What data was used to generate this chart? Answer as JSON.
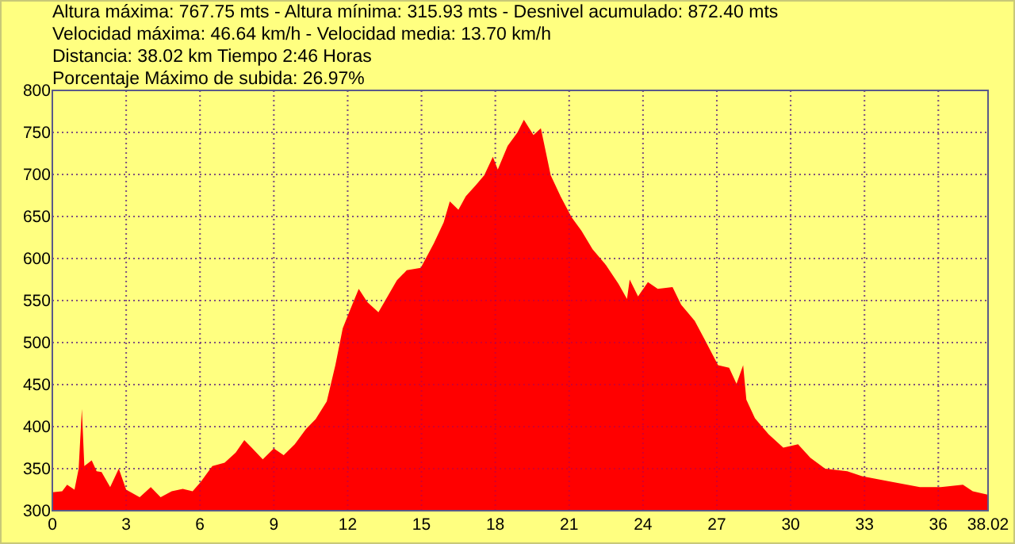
{
  "chart_data": {
    "type": "area",
    "annotations": [
      "Altura máxima: 767.75 mts - Altura mínima: 315.93 mts - Desnivel acumulado: 872.40 mts",
      "Velocidad máxima: 46.64 km/h - Velocidad media: 13.70 km/h",
      "Distancia: 38.02 km Tiempo 2:46 Horas",
      "Porcentaje Máximo de subida: 26.97%"
    ],
    "series": [
      {
        "color": "#ff0000",
        "x": [
          0,
          0.4,
          0.6,
          0.9,
          1.07,
          1.2,
          1.3,
          1.6,
          1.8,
          2.0,
          2.35,
          2.7,
          3.0,
          3.55,
          4.0,
          4.4,
          4.85,
          5.3,
          5.7,
          6.05,
          6.5,
          7.0,
          7.45,
          7.8,
          8.1,
          8.55,
          9.0,
          9.4,
          9.85,
          10.3,
          10.7,
          11.15,
          11.5,
          11.8,
          12.06,
          12.45,
          12.8,
          13.25,
          14.0,
          14.4,
          14.97,
          15.5,
          15.9,
          16.15,
          16.5,
          16.8,
          17.2,
          17.55,
          17.9,
          18.1,
          18.5,
          18.9,
          19.16,
          19.55,
          19.85,
          20.25,
          20.65,
          21.1,
          21.5,
          21.95,
          22.5,
          23.0,
          23.35,
          23.46,
          23.8,
          24.2,
          24.6,
          25.2,
          25.55,
          26.1,
          26.5,
          27.05,
          27.5,
          27.8,
          28.07,
          28.2,
          28.55,
          29.1,
          29.7,
          30.3,
          30.8,
          31.4,
          32.3,
          32.9,
          34.0,
          35.25,
          36.1,
          37.0,
          37.4,
          38.0,
          38.02
        ],
        "values": [
          322,
          323,
          331,
          325,
          350,
          421,
          353,
          360,
          347,
          346,
          328,
          350,
          325,
          316,
          328,
          316,
          323,
          326,
          323,
          335,
          353,
          357,
          369,
          384,
          375,
          361,
          374,
          366,
          379,
          397,
          409,
          430,
          473,
          517,
          536,
          564,
          548,
          536,
          574,
          586,
          589,
          618,
          643,
          668,
          658,
          674,
          687,
          699,
          721,
          706,
          734,
          750,
          765,
          747,
          755,
          699,
          674,
          649,
          633,
          611,
          592,
          570,
          552,
          575,
          555,
          572,
          564,
          566,
          545,
          526,
          504,
          473,
          470,
          451,
          473,
          432,
          410,
          391,
          375,
          379,
          363,
          350,
          347,
          341,
          335,
          328,
          328,
          331,
          323,
          319,
          338
        ]
      }
    ],
    "xlim": [
      0,
      38.02
    ],
    "xticks": [
      0,
      3,
      6,
      9,
      12,
      15,
      18,
      21,
      24,
      27,
      30,
      33,
      36,
      38.02
    ],
    "ylim": [
      300,
      800
    ],
    "yticks": [
      300,
      350,
      400,
      450,
      500,
      550,
      600,
      650,
      700,
      750,
      800
    ],
    "grid": true
  }
}
